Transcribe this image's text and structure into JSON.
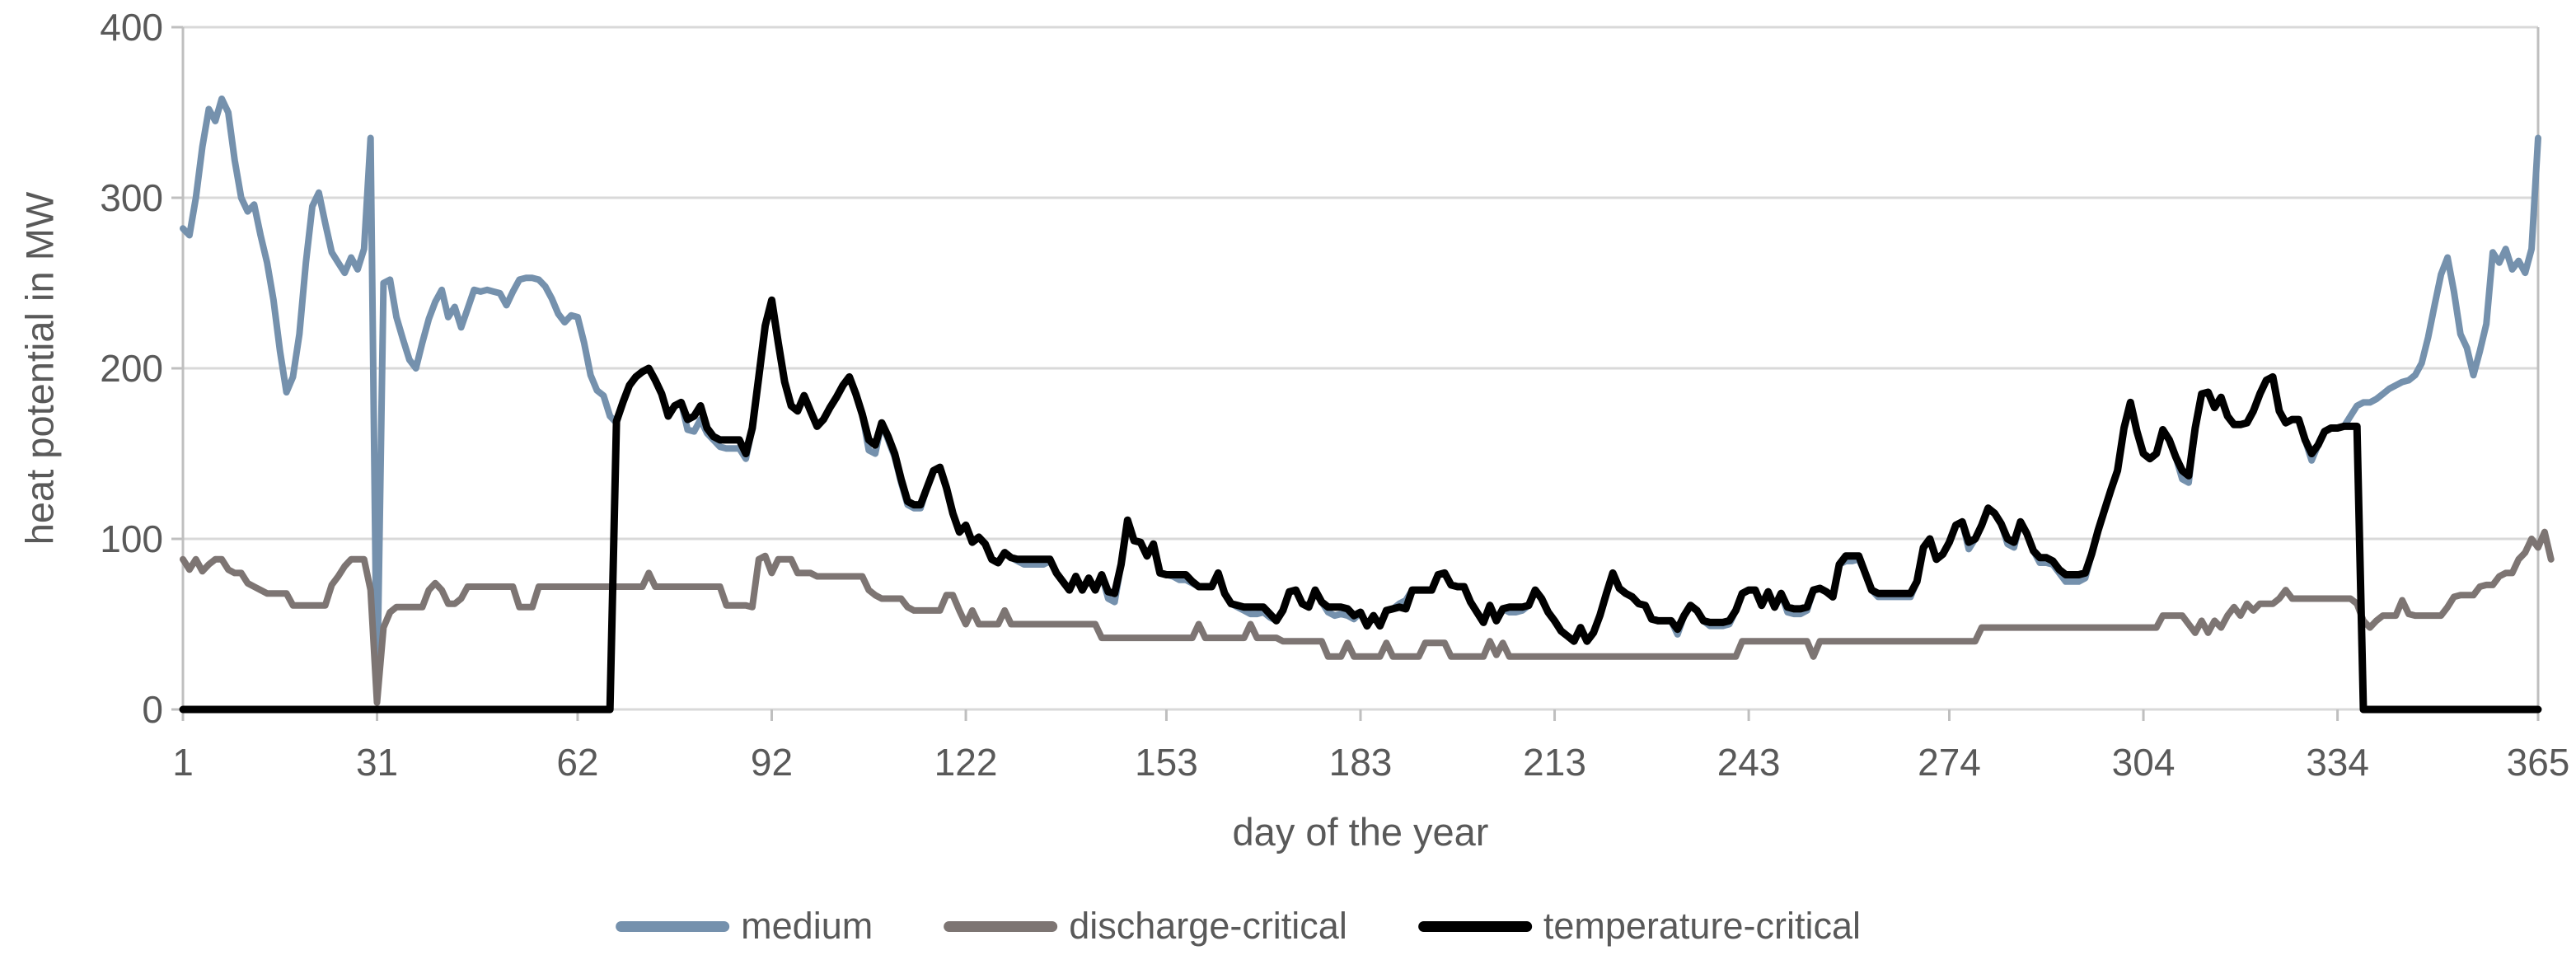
{
  "chart_data": {
    "type": "line",
    "title": "",
    "xlabel": "day of the year",
    "ylabel": "heat potential in MW",
    "xlim": [
      1,
      365
    ],
    "ylim": [
      0,
      400
    ],
    "grid": "horizontal",
    "gridline_color": "#d9d9d9",
    "axis_line_color": "#bfbfbf",
    "text_color": "#595959",
    "legend_position": "bottom-center",
    "x_ticks": [
      1,
      31,
      62,
      92,
      122,
      153,
      183,
      213,
      243,
      274,
      304,
      334,
      365
    ],
    "x_tick_labels": [
      "1",
      "31",
      "62",
      "92",
      "122",
      "153",
      "183",
      "213",
      "243",
      "274",
      "304",
      "334",
      "365"
    ],
    "y_ticks": [
      0,
      100,
      200,
      300,
      400
    ],
    "y_tick_labels": [
      "0",
      "100",
      "200",
      "300",
      "400"
    ],
    "x_unit": "day index, daily values days 1-365",
    "series": [
      {
        "name": "medium",
        "color": "#7591AD",
        "line_width": 8,
        "values": [
          282,
          278,
          300,
          330,
          352,
          345,
          358,
          350,
          322,
          300,
          292,
          296,
          278,
          262,
          240,
          210,
          186,
          195,
          220,
          262,
          295,
          303,
          285,
          268,
          262,
          256,
          265,
          258,
          270,
          335,
          8,
          250,
          252,
          230,
          217,
          205,
          200,
          215,
          229,
          239,
          246,
          230,
          236,
          224,
          235,
          246,
          245,
          246,
          245,
          244,
          237,
          245,
          252,
          253,
          253,
          252,
          248,
          241,
          232,
          227,
          231,
          230,
          215,
          196,
          187,
          184,
          172,
          168,
          180,
          190,
          195,
          198,
          200,
          193,
          185,
          172,
          178,
          180,
          164,
          163,
          170,
          162,
          158,
          154,
          153,
          153,
          153,
          147,
          165,
          195,
          225,
          240,
          215,
          192,
          178,
          175,
          184,
          175,
          166,
          170,
          177,
          183,
          190,
          195,
          185,
          173,
          152,
          150,
          168,
          158,
          148,
          133,
          120,
          118,
          118,
          130,
          140,
          142,
          130,
          115,
          104,
          108,
          98,
          101,
          97,
          88,
          86,
          92,
          89,
          87,
          85,
          85,
          85,
          85,
          87,
          80,
          75,
          70,
          78,
          70,
          77,
          70,
          79,
          65,
          63,
          85,
          111,
          99,
          98,
          90,
          97,
          80,
          79,
          78,
          76,
          76,
          74,
          72,
          72,
          72,
          80,
          68,
          62,
          60,
          58,
          56,
          56,
          57,
          54,
          52,
          58,
          69,
          70,
          62,
          60,
          70,
          63,
          57,
          55,
          56,
          55,
          53,
          57,
          49,
          55,
          49,
          58,
          59,
          62,
          64,
          70,
          70,
          70,
          70,
          79,
          80,
          73,
          72,
          72,
          63,
          57,
          51,
          61,
          52,
          59,
          57,
          57,
          58,
          61,
          70,
          65,
          57,
          52,
          46,
          43,
          40,
          48,
          40,
          45,
          55,
          68,
          80,
          71,
          68,
          66,
          62,
          61,
          53,
          52,
          52,
          52,
          44,
          55,
          61,
          58,
          52,
          49,
          49,
          49,
          50,
          58,
          68,
          70,
          70,
          61,
          69,
          60,
          68,
          57,
          56,
          56,
          58,
          70,
          71,
          69,
          66,
          85,
          87,
          87,
          88,
          80,
          70,
          66,
          66,
          66,
          66,
          66,
          66,
          75,
          95,
          100,
          88,
          91,
          98,
          108,
          110,
          94,
          100,
          108,
          118,
          115,
          109,
          97,
          95,
          110,
          103,
          93,
          86,
          86,
          85,
          80,
          75,
          75,
          75,
          77,
          91,
          105,
          117,
          129,
          140,
          165,
          180,
          163,
          150,
          147,
          150,
          164,
          158,
          148,
          135,
          133,
          165,
          185,
          186,
          177,
          183,
          172,
          167,
          167,
          168,
          175,
          185,
          193,
          195,
          175,
          168,
          170,
          170,
          158,
          146,
          155,
          163,
          165,
          165,
          166,
          172,
          178,
          180,
          180,
          182,
          185,
          188,
          190,
          192,
          193,
          196,
          203,
          218,
          237,
          255,
          265,
          245,
          220,
          212,
          196,
          210,
          226,
          268,
          262,
          270,
          258,
          263,
          256,
          270,
          335
        ]
      },
      {
        "name": "discharge-critical",
        "color": "#7D7573",
        "line_width": 8,
        "values": [
          88,
          82,
          88,
          81,
          85,
          88,
          88,
          82,
          80,
          80,
          74,
          72,
          70,
          68,
          68,
          68,
          68,
          61,
          61,
          61,
          61,
          61,
          61,
          73,
          78,
          84,
          88,
          88,
          88,
          70,
          4,
          48,
          57,
          60,
          60,
          60,
          60,
          60,
          70,
          74,
          70,
          62,
          62,
          65,
          72,
          72,
          72,
          72,
          72,
          72,
          72,
          72,
          60,
          60,
          60,
          72,
          72,
          72,
          72,
          72,
          72,
          72,
          72,
          72,
          72,
          72,
          72,
          72,
          72,
          72,
          72,
          72,
          80,
          72,
          72,
          72,
          72,
          72,
          72,
          72,
          72,
          72,
          72,
          72,
          61,
          61,
          61,
          61,
          60,
          88,
          90,
          80,
          88,
          88,
          88,
          80,
          80,
          80,
          78,
          78,
          78,
          78,
          78,
          78,
          78,
          78,
          70,
          67,
          65,
          65,
          65,
          65,
          60,
          58,
          58,
          58,
          58,
          58,
          67,
          67,
          58,
          50,
          58,
          50,
          50,
          50,
          50,
          58,
          50,
          50,
          50,
          50,
          50,
          50,
          50,
          50,
          50,
          50,
          50,
          50,
          50,
          50,
          42,
          42,
          42,
          42,
          42,
          42,
          42,
          42,
          42,
          42,
          42,
          42,
          42,
          42,
          42,
          50,
          42,
          42,
          42,
          42,
          42,
          42,
          42,
          50,
          42,
          42,
          42,
          42,
          40,
          40,
          40,
          40,
          40,
          40,
          40,
          31,
          31,
          31,
          39,
          31,
          31,
          31,
          31,
          31,
          39,
          31,
          31,
          31,
          31,
          31,
          39,
          39,
          39,
          39,
          31,
          31,
          31,
          31,
          31,
          31,
          40,
          32,
          39,
          31,
          31,
          31,
          31,
          31,
          31,
          31,
          31,
          31,
          31,
          31,
          31,
          31,
          31,
          31,
          31,
          31,
          31,
          31,
          31,
          31,
          31,
          31,
          31,
          31,
          31,
          31,
          31,
          31,
          31,
          31,
          31,
          31,
          31,
          31,
          31,
          40,
          40,
          40,
          40,
          40,
          40,
          40,
          40,
          40,
          40,
          40,
          31,
          40,
          40,
          40,
          40,
          40,
          40,
          40,
          40,
          40,
          40,
          40,
          40,
          40,
          40,
          40,
          40,
          40,
          40,
          40,
          40,
          40,
          40,
          40,
          40,
          40,
          48,
          48,
          48,
          48,
          48,
          48,
          48,
          48,
          48,
          48,
          48,
          48,
          48,
          48,
          48,
          48,
          48,
          48,
          48,
          48,
          48,
          48,
          48,
          48,
          48,
          48,
          48,
          48,
          55,
          55,
          55,
          55,
          50,
          45,
          52,
          45,
          52,
          48,
          55,
          60,
          55,
          62,
          58,
          62,
          62,
          62,
          65,
          70,
          65,
          65,
          65,
          65,
          65,
          65,
          65,
          65,
          65,
          65,
          62,
          52,
          48,
          52,
          55,
          55,
          55,
          64,
          56,
          55,
          55,
          55,
          55,
          55,
          60,
          66,
          67,
          67,
          67,
          72,
          73,
          73,
          78,
          80,
          80,
          88,
          92,
          100,
          95,
          104,
          88
        ]
      },
      {
        "name": "temperature-critical",
        "color": "#000000",
        "line_width": 9,
        "values": [
          0,
          0,
          0,
          0,
          0,
          0,
          0,
          0,
          0,
          0,
          0,
          0,
          0,
          0,
          0,
          0,
          0,
          0,
          0,
          0,
          0,
          0,
          0,
          0,
          0,
          0,
          0,
          0,
          0,
          0,
          0,
          0,
          0,
          0,
          0,
          0,
          0,
          0,
          0,
          0,
          0,
          0,
          0,
          0,
          0,
          0,
          0,
          0,
          0,
          0,
          0,
          0,
          0,
          0,
          0,
          0,
          0,
          0,
          0,
          0,
          0,
          0,
          0,
          0,
          0,
          0,
          0,
          169,
          180,
          190,
          195,
          198,
          200,
          193,
          185,
          172,
          178,
          180,
          170,
          172,
          178,
          165,
          160,
          158,
          158,
          158,
          158,
          150,
          165,
          195,
          225,
          240,
          215,
          192,
          178,
          175,
          184,
          175,
          166,
          170,
          177,
          183,
          190,
          195,
          185,
          173,
          158,
          155,
          168,
          160,
          150,
          135,
          122,
          120,
          120,
          130,
          140,
          142,
          130,
          115,
          104,
          108,
          98,
          101,
          97,
          88,
          86,
          92,
          89,
          88,
          88,
          88,
          88,
          88,
          88,
          80,
          75,
          70,
          78,
          70,
          77,
          70,
          79,
          69,
          68,
          85,
          111,
          99,
          98,
          90,
          97,
          80,
          79,
          79,
          79,
          79,
          75,
          72,
          72,
          72,
          80,
          68,
          62,
          61,
          60,
          60,
          60,
          60,
          56,
          52,
          58,
          69,
          70,
          62,
          60,
          70,
          63,
          60,
          60,
          60,
          59,
          55,
          57,
          49,
          55,
          49,
          58,
          59,
          60,
          59,
          70,
          70,
          70,
          70,
          79,
          80,
          73,
          72,
          72,
          63,
          57,
          51,
          61,
          52,
          59,
          60,
          60,
          60,
          61,
          70,
          65,
          57,
          52,
          46,
          43,
          40,
          48,
          40,
          45,
          55,
          68,
          80,
          71,
          68,
          66,
          62,
          61,
          53,
          52,
          52,
          52,
          47,
          55,
          61,
          58,
          52,
          51,
          51,
          51,
          52,
          58,
          68,
          70,
          70,
          61,
          69,
          60,
          68,
          60,
          59,
          59,
          60,
          70,
          71,
          69,
          66,
          85,
          90,
          90,
          90,
          80,
          70,
          68,
          68,
          68,
          68,
          68,
          68,
          75,
          95,
          100,
          88,
          91,
          98,
          108,
          110,
          98,
          100,
          108,
          118,
          115,
          109,
          100,
          98,
          110,
          103,
          93,
          89,
          89,
          87,
          82,
          79,
          79,
          79,
          80,
          91,
          105,
          117,
          129,
          140,
          165,
          180,
          163,
          150,
          147,
          150,
          164,
          158,
          148,
          140,
          137,
          165,
          185,
          186,
          177,
          183,
          172,
          167,
          167,
          168,
          175,
          185,
          193,
          195,
          175,
          168,
          170,
          170,
          158,
          150,
          155,
          163,
          165,
          165,
          166,
          166,
          166,
          0,
          0,
          0,
          0,
          0,
          0,
          0,
          0,
          0,
          0,
          0,
          0,
          0,
          0,
          0,
          0,
          0,
          0,
          0,
          0,
          0,
          0,
          0,
          0,
          0,
          0,
          0,
          0
        ]
      }
    ]
  }
}
